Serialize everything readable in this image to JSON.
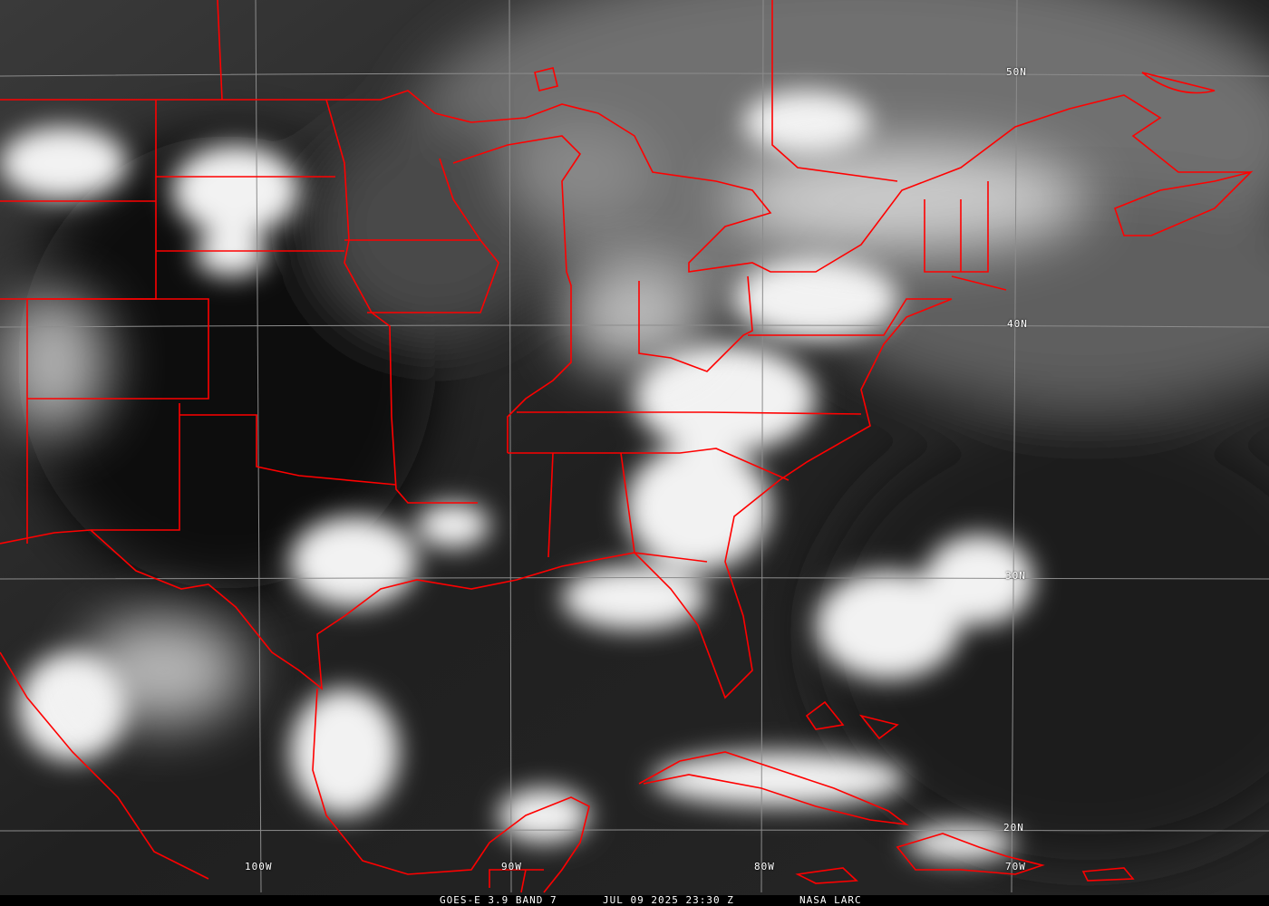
{
  "caption": {
    "satellite_band": "GOES-E 3.9 BAND 7",
    "datetime": "JUL 09 2025 23:30 Z",
    "source": "NASA LARC"
  },
  "grid_labels": {
    "lat": [
      "50N",
      "40N",
      "30N",
      "20N"
    ],
    "lon": [
      "100W",
      "90W",
      "80W",
      "70W"
    ]
  },
  "colors": {
    "borders": "#ff0000",
    "grid": "#8c8c8c",
    "label_text": "#ffffff"
  }
}
